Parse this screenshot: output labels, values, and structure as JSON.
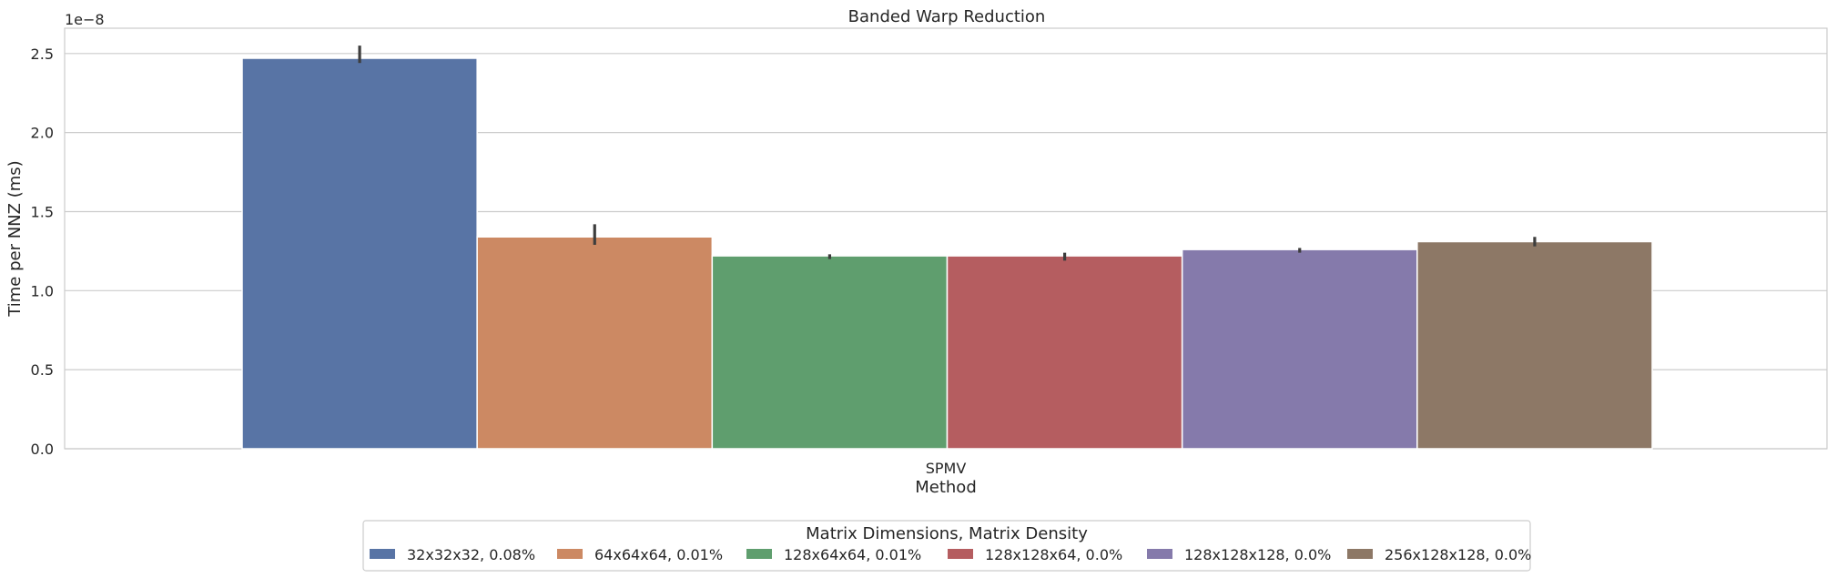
{
  "chart_data": {
    "type": "bar",
    "title": "Banded Warp Reduction",
    "xlabel": "Method",
    "ylabel": "Time per NNZ (ms)",
    "y_offset_label": "1e−8",
    "categories": [
      "SPMV"
    ],
    "ylim": [
      0,
      2.66
    ],
    "y_ticks": [
      "0.0",
      "0.5",
      "1.0",
      "1.5",
      "2.0",
      "2.5"
    ],
    "y_tick_values": [
      0.0,
      0.5,
      1.0,
      1.5,
      2.0,
      2.5
    ],
    "grid": "horizontal",
    "legend": {
      "title": "Matrix Dimensions, Matrix Density",
      "placement": "bottom-center"
    },
    "series": [
      {
        "name": "32x32x32, 0.08%",
        "values": [
          2.47
        ],
        "err_low": [
          2.44
        ],
        "err_high": [
          2.55
        ],
        "color": "#5874a5"
      },
      {
        "name": "64x64x64, 0.01%",
        "values": [
          1.34
        ],
        "err_low": [
          1.29
        ],
        "err_high": [
          1.42
        ],
        "color": "#cc8963"
      },
      {
        "name": "128x64x64, 0.01%",
        "values": [
          1.22
        ],
        "err_low": [
          1.2
        ],
        "err_high": [
          1.23
        ],
        "color": "#5f9e6e"
      },
      {
        "name": "128x128x64, 0.0%",
        "values": [
          1.22
        ],
        "err_low": [
          1.19
        ],
        "err_high": [
          1.24
        ],
        "color": "#b55d60"
      },
      {
        "name": "128x128x128, 0.0%",
        "values": [
          1.26
        ],
        "err_low": [
          1.24
        ],
        "err_high": [
          1.27
        ],
        "color": "#857aab"
      },
      {
        "name": "256x128x128, 0.0%",
        "values": [
          1.31
        ],
        "err_low": [
          1.28
        ],
        "err_high": [
          1.34
        ],
        "color": "#8d7866"
      }
    ]
  }
}
